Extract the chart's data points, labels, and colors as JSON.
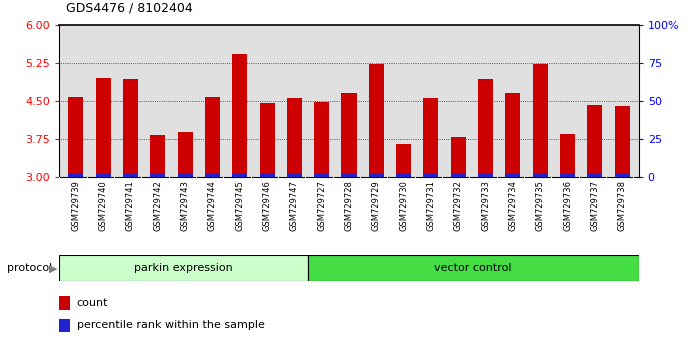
{
  "title": "GDS4476 / 8102404",
  "samples": [
    "GSM729739",
    "GSM729740",
    "GSM729741",
    "GSM729742",
    "GSM729743",
    "GSM729744",
    "GSM729745",
    "GSM729746",
    "GSM729747",
    "GSM729727",
    "GSM729728",
    "GSM729729",
    "GSM729730",
    "GSM729731",
    "GSM729732",
    "GSM729733",
    "GSM729734",
    "GSM729735",
    "GSM729736",
    "GSM729737",
    "GSM729738"
  ],
  "count_values": [
    4.57,
    4.95,
    4.93,
    3.82,
    3.88,
    4.57,
    5.42,
    4.45,
    4.55,
    4.47,
    4.65,
    5.22,
    3.65,
    4.55,
    3.78,
    4.93,
    4.65,
    5.22,
    3.85,
    4.42,
    4.4
  ],
  "parkin_count": 9,
  "vector_count": 12,
  "parkin_label": "parkin expression",
  "vector_label": "vector control",
  "protocol_label": "protocol",
  "ylim_left": [
    3,
    6
  ],
  "yticks_left": [
    3,
    3.75,
    4.5,
    5.25,
    6
  ],
  "yticks_right": [
    0,
    25,
    50,
    75,
    100
  ],
  "ylim_right": [
    0,
    100
  ],
  "bar_color_red": "#cc0000",
  "bar_color_blue": "#2222cc",
  "parkin_bg": "#ccffcc",
  "vector_bg": "#44dd44",
  "plot_bg": "#e0e0e0",
  "xtick_bg": "#cccccc",
  "legend_count": "count",
  "legend_pct": "percentile rank within the sample",
  "bar_width": 0.55,
  "pct_bar_height": 0.055
}
